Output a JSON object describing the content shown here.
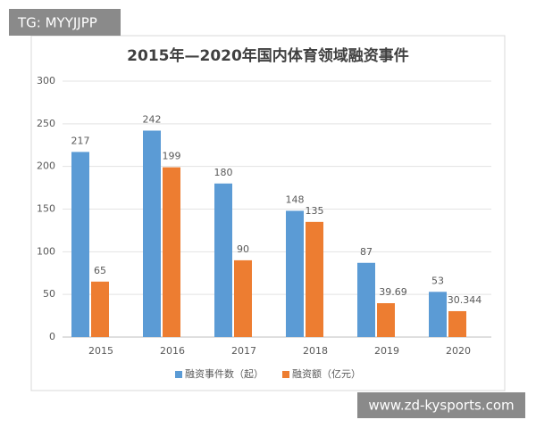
{
  "chart_data": {
    "type": "bar",
    "title": "2015年—2020年国内体育领域融资事件",
    "categories": [
      "2015",
      "2016",
      "2017",
      "2018",
      "2019",
      "2020"
    ],
    "series": [
      {
        "name": "融资事件数（起）",
        "color": "#5b9bd5",
        "values": [
          217,
          242,
          180,
          148,
          87,
          53
        ]
      },
      {
        "name": "融资额（亿元）",
        "color": "#ed7d31",
        "values": [
          65,
          199,
          90,
          135,
          39.69,
          30.344
        ]
      }
    ],
    "ylim": [
      0,
      300
    ],
    "yticks": [
      0,
      50,
      100,
      150,
      200,
      250,
      300
    ],
    "grid": true,
    "legend": "bottom"
  },
  "watermarks": {
    "top_left": "TG: MYYJJPP",
    "bottom_right": "www.zd-kysports.com"
  }
}
